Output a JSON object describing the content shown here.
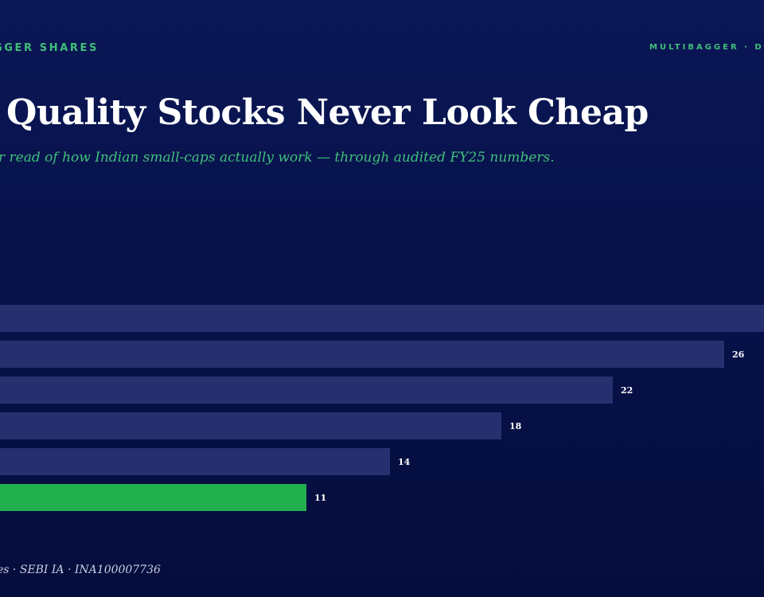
{
  "header": {
    "brand_left": "GGER SHARES",
    "brand_right": "MULTIBAGGER · D"
  },
  "title": "Quality Stocks Never Look Cheap",
  "subtitle": "r read of how Indian small-caps actually work — through audited FY25 numbers.",
  "footer": "es · SEBI IA · INA100007736",
  "colors": {
    "bar": "#27306f",
    "highlight_bar": "#22b04f",
    "label": "#ffffff",
    "accent": "#3fbf7a"
  },
  "chart_data": {
    "type": "bar",
    "orientation": "horizontal",
    "values": [
      null,
      26,
      22,
      18,
      14,
      11
    ],
    "labels": [
      "",
      "26",
      "22",
      "18",
      "14",
      "11"
    ],
    "highlight_index": 5
  }
}
